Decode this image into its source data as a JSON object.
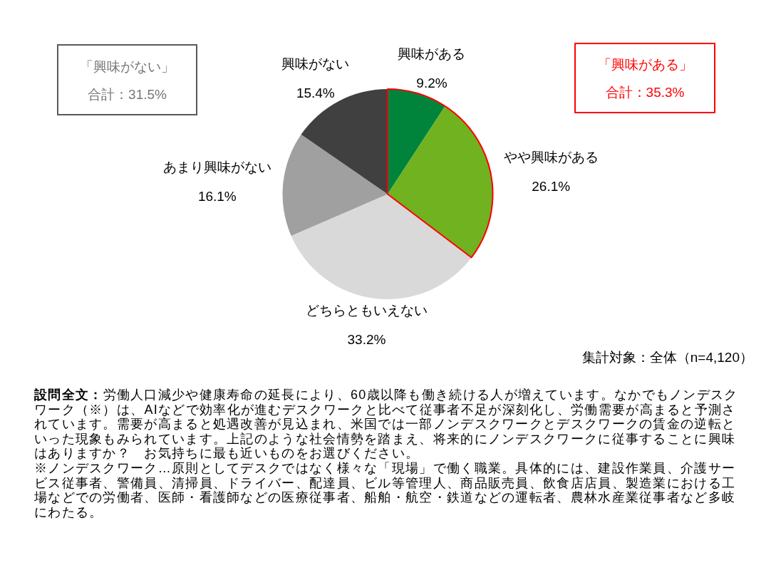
{
  "chart_data": {
    "type": "pie",
    "categories": [
      "興味がある",
      "やや興味がある",
      "どちらともいえない",
      "あまり興味がない",
      "興味がない"
    ],
    "values": [
      9.2,
      26.1,
      33.2,
      16.1,
      15.4
    ],
    "value_labels": [
      "9.2%",
      "26.1%",
      "33.2%",
      "16.1%",
      "15.4%"
    ],
    "colors": [
      "#00843c",
      "#70b21f",
      "#d9d9d9",
      "#a0a0a0",
      "#404040"
    ],
    "annotations": [
      "「興味がない」",
      "合計：31.5%",
      "「興味がある」",
      "合計：35.3%",
      "集計対象：全体（n=4,120）",
      "設問全文：労働人口減少や健康寿命の延長により、60歳以降も働き続ける人が増えています。なかでもノンデスクワーク（※）は、AIなどで効率化が進むデスクワークと比べて従事者不足が深刻化し、労働需要が高まると予測されています。需要が高まると処遇改善が見込まれ、米国では一部ノンデスクワークとデスクワークの賃金の逆転といった現象もみられています。上記のような社会情勢を踏まえ、将来的にノンデスクワークに従事することに興味はありますか？　お気持ちに最も近いものをお選びください。",
      "※ノンデスクワーク…原則としてデスクではなく様々な「現場」で働く職業。具体的には、建設作業員、介護サービス従事者、警備員、清掃員、ドライバー、配達員、ビル等管理人、商品販売員、飲食店店員、製造業における工場などでの労働者、医師・看護師などの医療従事者、船舶・航空・鉄道などの運転者、農林水産業従事者など多岐にわたる。"
    ]
  }
}
